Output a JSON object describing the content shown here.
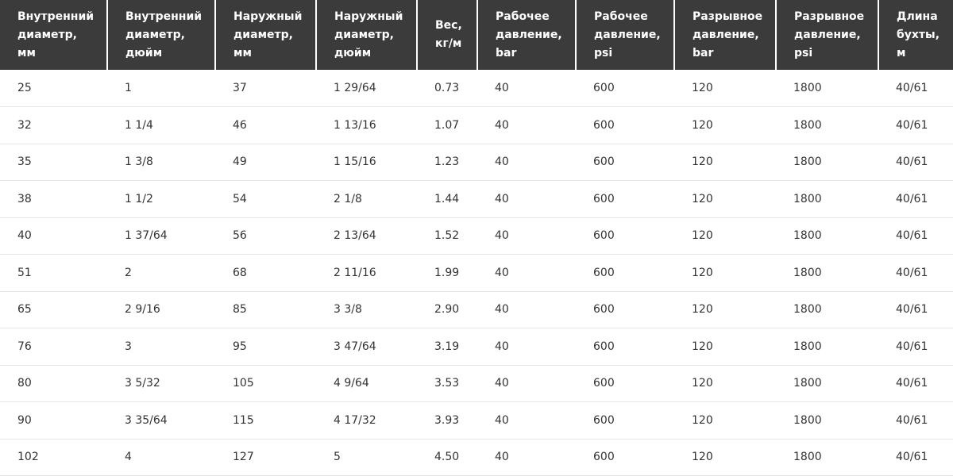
{
  "table": {
    "header": [
      "Внутренний диаметр, мм",
      "Внутренний диаметр, дюйм",
      "Наружный диаметр, мм",
      "Наружный диаметр, дюйм",
      "Вес, кг/м",
      "Рабочее давление, bar",
      "Рабочее давление, psi",
      "Разрывное давление, bar",
      "Разрывное давление, psi",
      "Длина бухты, м"
    ],
    "rows": [
      [
        "25",
        "1",
        "37",
        "1 29/64",
        "0.73",
        "40",
        "600",
        "120",
        "1800",
        "40/61"
      ],
      [
        "32",
        "1 1/4",
        "46",
        "1 13/16",
        "1.07",
        "40",
        "600",
        "120",
        "1800",
        "40/61"
      ],
      [
        "35",
        "1 3/8",
        "49",
        "1 15/16",
        "1.23",
        "40",
        "600",
        "120",
        "1800",
        "40/61"
      ],
      [
        "38",
        "1 1/2",
        "54",
        "2 1/8",
        "1.44",
        "40",
        "600",
        "120",
        "1800",
        "40/61"
      ],
      [
        "40",
        "1 37/64",
        "56",
        "2 13/64",
        "1.52",
        "40",
        "600",
        "120",
        "1800",
        "40/61"
      ],
      [
        "51",
        "2",
        "68",
        "2 11/16",
        "1.99",
        "40",
        "600",
        "120",
        "1800",
        "40/61"
      ],
      [
        "65",
        "2 9/16",
        "85",
        "3 3/8",
        "2.90",
        "40",
        "600",
        "120",
        "1800",
        "40/61"
      ],
      [
        "76",
        "3",
        "95",
        "3 47/64",
        "3.19",
        "40",
        "600",
        "120",
        "1800",
        "40/61"
      ],
      [
        "80",
        "3 5/32",
        "105",
        "4 9/64",
        "3.53",
        "40",
        "600",
        "120",
        "1800",
        "40/61"
      ],
      [
        "90",
        "3 35/64",
        "115",
        "4 17/32",
        "3.93",
        "40",
        "600",
        "120",
        "1800",
        "40/61"
      ],
      [
        "102",
        "4",
        "127",
        "5",
        "4.50",
        "40",
        "600",
        "120",
        "1800",
        "40/61"
      ]
    ]
  }
}
